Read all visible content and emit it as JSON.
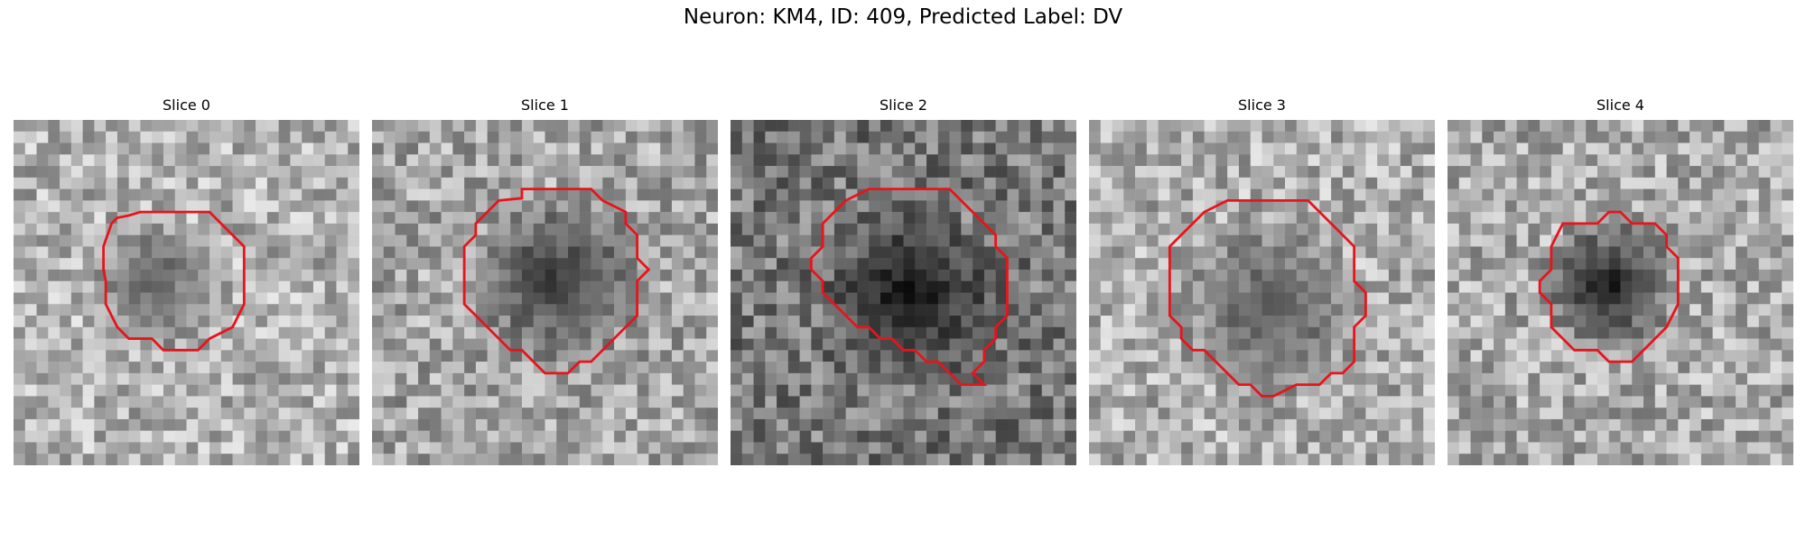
{
  "figure": {
    "title": "Neuron: KM4, ID: 409, Predicted Label: DV"
  },
  "panels": [
    {
      "title": "Slice 0",
      "seed": 11,
      "mean": 178,
      "blob_dark": 95
    },
    {
      "title": "Slice 1",
      "seed": 23,
      "mean": 165,
      "blob_dark": 55
    },
    {
      "title": "Slice 2",
      "seed": 37,
      "mean": 120,
      "blob_dark": 18
    },
    {
      "title": "Slice 3",
      "seed": 51,
      "mean": 175,
      "blob_dark": 85
    },
    {
      "title": "Slice 4",
      "seed": 67,
      "mean": 170,
      "blob_dark": 25
    }
  ],
  "colors": {
    "contour": "#e8141b",
    "background": "#ffffff"
  }
}
